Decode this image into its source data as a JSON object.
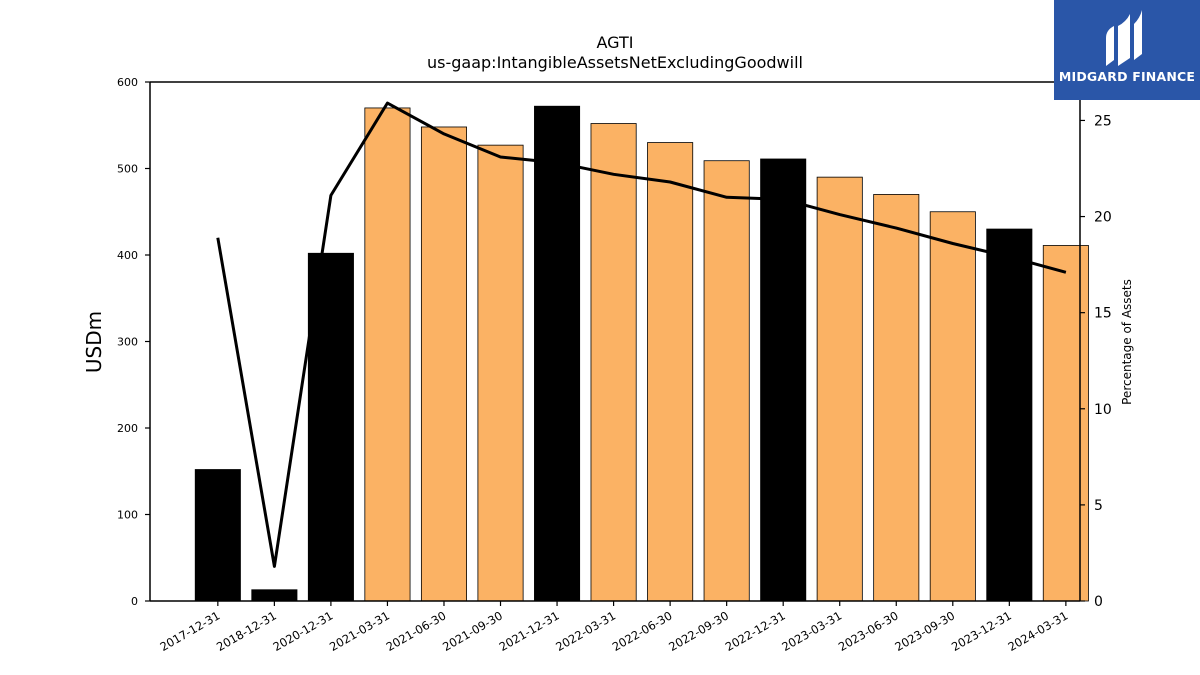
{
  "chart_data": {
    "type": "bar",
    "title": "AGTI",
    "subtitle": "us-gaap:IntangibleAssetsNetExcludingGoodwill",
    "ylabel": "USDm",
    "y2label": "Percentage of Assets",
    "ylim": [
      0,
      600
    ],
    "y2lim": [
      0,
      27
    ],
    "yticks": [
      0,
      100,
      200,
      300,
      400,
      500,
      600
    ],
    "y2ticks": [
      0,
      5,
      10,
      15,
      20,
      25
    ],
    "categories": [
      "2017-12-31",
      "2018-12-31",
      "2020-12-31",
      "2021-03-31",
      "2021-06-30",
      "2021-09-30",
      "2021-12-31",
      "2022-03-31",
      "2022-06-30",
      "2022-09-30",
      "2022-12-31",
      "2023-03-31",
      "2023-06-30",
      "2023-09-30",
      "2023-12-31",
      "2024-03-31"
    ],
    "series": [
      {
        "type": "bar",
        "values": [
          152,
          13,
          402,
          570,
          548,
          527,
          572,
          552,
          530,
          509,
          511,
          490,
          470,
          450,
          430,
          411
        ],
        "colors": [
          "#000000",
          "#000000",
          "#000000",
          "#fbb264",
          "#fbb264",
          "#fbb264",
          "#000000",
          "#fbb264",
          "#fbb264",
          "#fbb264",
          "#000000",
          "#fbb264",
          "#fbb264",
          "#fbb264",
          "#000000",
          "#fbb264"
        ]
      },
      {
        "type": "line",
        "axis": "right",
        "color": "#000000",
        "values": [
          18.9,
          1.8,
          21.1,
          25.9,
          24.3,
          23.1,
          22.8,
          22.2,
          21.8,
          21.0,
          20.9,
          20.1,
          19.4,
          18.6,
          17.9,
          17.1
        ]
      }
    ],
    "grid": false,
    "legend": "none"
  },
  "logo": {
    "text": "MIDGARD FINANCE",
    "color": "#2a56a8"
  }
}
